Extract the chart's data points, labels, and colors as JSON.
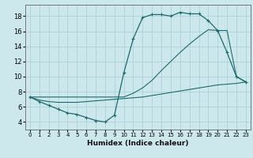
{
  "xlabel": "Humidex (Indice chaleur)",
  "bg_color": "#cce8ec",
  "grid_color": "#aad4d8",
  "line_color": "#1a6b6b",
  "xlim": [
    -0.5,
    23.5
  ],
  "ylim": [
    3.0,
    19.5
  ],
  "xticks": [
    0,
    1,
    2,
    3,
    4,
    5,
    6,
    7,
    8,
    9,
    10,
    11,
    12,
    13,
    14,
    15,
    16,
    17,
    18,
    19,
    20,
    21,
    22,
    23
  ],
  "yticks": [
    4,
    6,
    8,
    10,
    12,
    14,
    16,
    18
  ],
  "line1_x": [
    0,
    1,
    2,
    3,
    4,
    5,
    6,
    7,
    8,
    9,
    10,
    11,
    12,
    13,
    14,
    15,
    16,
    17,
    18,
    19,
    20,
    21,
    22,
    23
  ],
  "line1_y": [
    7.3,
    6.7,
    6.2,
    5.7,
    5.2,
    5.0,
    4.6,
    4.2,
    4.0,
    4.9,
    10.5,
    15.0,
    17.8,
    18.2,
    18.2,
    18.0,
    18.5,
    18.3,
    18.3,
    17.4,
    16.1,
    13.2,
    10.0,
    9.3
  ],
  "line2_x": [
    0,
    1,
    2,
    3,
    4,
    5,
    6,
    7,
    8,
    9,
    10,
    11,
    12,
    13,
    14,
    15,
    16,
    17,
    18,
    19,
    20,
    21,
    22,
    23
  ],
  "line2_y": [
    7.3,
    6.9,
    6.7,
    6.6,
    6.6,
    6.6,
    6.7,
    6.8,
    6.9,
    7.0,
    7.1,
    7.2,
    7.3,
    7.5,
    7.7,
    7.9,
    8.1,
    8.3,
    8.5,
    8.7,
    8.9,
    9.0,
    9.1,
    9.3
  ],
  "line3_x": [
    0,
    10,
    11,
    12,
    13,
    14,
    15,
    16,
    17,
    18,
    19,
    20,
    21,
    22,
    23
  ],
  "line3_y": [
    7.3,
    7.3,
    7.8,
    8.5,
    9.5,
    10.8,
    12.0,
    13.2,
    14.3,
    15.3,
    16.2,
    16.1,
    16.1,
    10.0,
    9.3
  ]
}
